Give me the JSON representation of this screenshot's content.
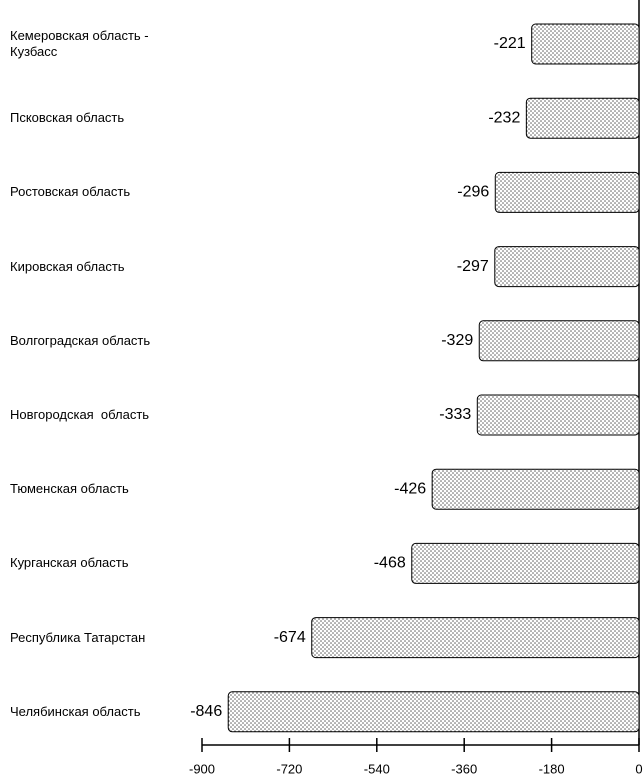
{
  "chart_data": {
    "type": "bar",
    "orientation": "horizontal",
    "categories": [
      "Кемеровская область - Кузбасс",
      "Псковская область",
      "Ростовская область",
      "Кировская область",
      "Волгоградская область",
      "Новгородская  область",
      "Тюменская область",
      "Курганская область",
      "Республика Татарстан",
      "Челябинская область"
    ],
    "values": [
      -221,
      -232,
      -296,
      -297,
      -329,
      -333,
      -426,
      -468,
      -674,
      -846
    ],
    "color": "#555555",
    "xlim": [
      -900,
      0
    ],
    "xticks": [
      -900,
      -720,
      -540,
      -360,
      -180,
      0
    ]
  }
}
